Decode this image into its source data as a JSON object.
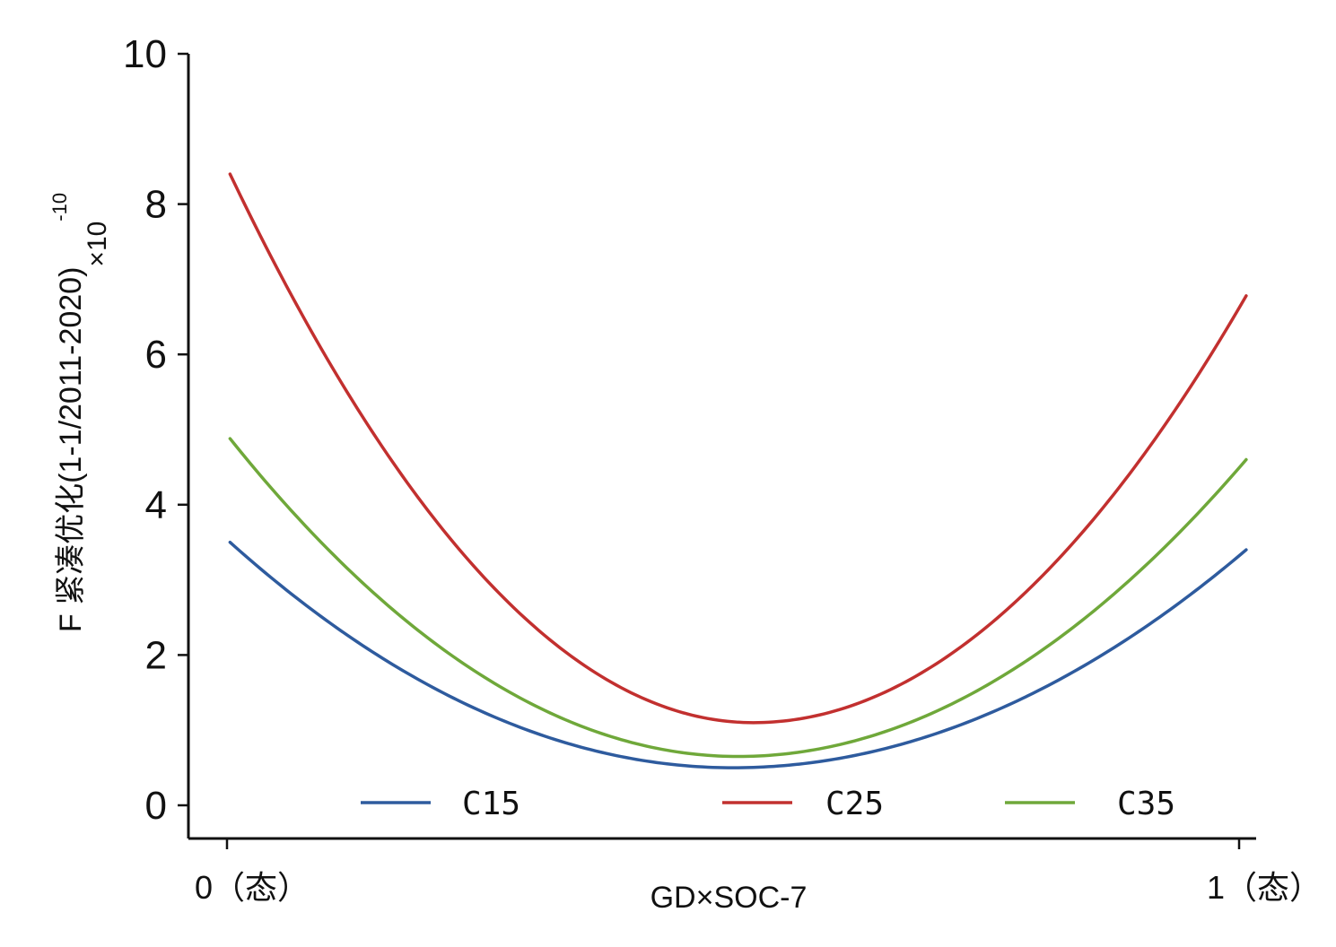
{
  "chart_data": {
    "type": "line",
    "xlabel": "GD×SOC-7",
    "ylabel": "F 紧凑优化(1-1/2011-2020)",
    "ylabel_suffix": "×10",
    "ylabel_exponent": "-10",
    "x_ticks": [
      {
        "value": 0,
        "label": "0（态）"
      },
      {
        "value": 1,
        "label": "1（态）"
      }
    ],
    "y_ticks": [
      0,
      2,
      4,
      6,
      8,
      10
    ],
    "xlim": [
      -0.04,
      1.02
    ],
    "ylim": [
      -0.45,
      10
    ],
    "x_domain": [
      0.003,
      1.007
    ],
    "legend_position": "bottom",
    "series": [
      {
        "name": "C15",
        "color": "#2e5b9e",
        "y_start": 3.5,
        "y_min": 0.5,
        "x_min": 0.5,
        "y_end": 3.4
      },
      {
        "name": "C25",
        "color": "#c2302f",
        "y_start": 8.4,
        "y_min": 1.1,
        "x_min": 0.52,
        "y_end": 6.78
      },
      {
        "name": "C35",
        "color": "#6fa83a",
        "y_start": 4.88,
        "y_min": 0.65,
        "x_min": 0.505,
        "y_end": 4.6
      }
    ]
  }
}
